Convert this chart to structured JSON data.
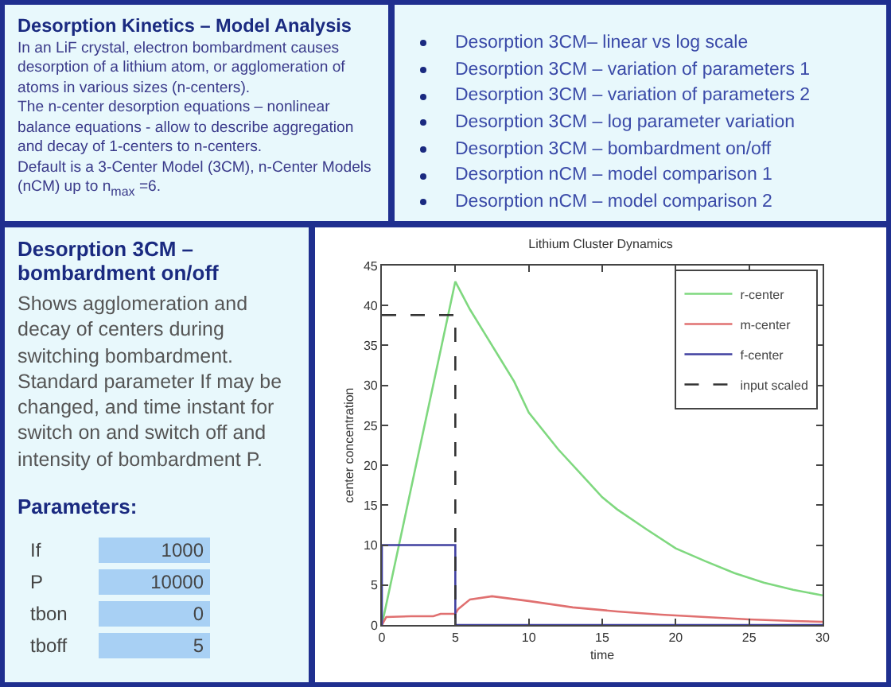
{
  "chart_data": [
    {
      "type": "other",
      "title": "Desorption Kinetics – Model Analysis",
      "annotations": [
        "In an LiF crystal, electron bombardment causes desorption of a lithium atom, or agglomeration of atoms in various sizes (n-centers).",
        "The n-center desorption equations – nonlinear balance equations - allow to describe aggregation and decay of 1-centers to n-centers.",
        "Default is a 3-Center Model (3CM), n-Center Models (nCM) up to n$_{max}$ =6."
      ]
    },
    {
      "type": "other",
      "categories": [
        "Desorption 3CM– linear vs log scale",
        "Desorption 3CM – variation of parameters 1",
        "Desorption 3CM – variation of parameters 2",
        "Desorption 3CM – log parameter variation",
        "Desorption 3CM – bombardment on/off",
        "Desorption nCM – model comparison 1",
        "Desorption nCM – model comparison 2"
      ]
    },
    {
      "type": "other",
      "title": "Desorption 3CM – bombardment on/off",
      "annotations": [
        "Shows agglomeration and decay of centers during switching bombardment. Standard parameter If may be changed, and time instant for switch on and switch off and intensity of bombardment P.",
        "Parameters:"
      ],
      "categories": [
        "If",
        "P",
        "tbon",
        "tboff"
      ],
      "values": [
        1000,
        10000,
        0,
        5
      ],
      "data_labels": true
    },
    {
      "type": "line",
      "title": "Lithium Cluster Dynamics",
      "xlabel": "time",
      "ylabel": "center concentration",
      "xlim": [
        0,
        30
      ],
      "xticks": [
        0,
        5,
        10,
        15,
        20,
        25,
        30
      ],
      "ylim": [
        0,
        45
      ],
      "yticks": [
        0,
        5,
        10,
        15,
        20,
        25,
        30,
        35,
        40,
        45
      ],
      "grid": false,
      "legend": "top right",
      "marker": "none",
      "series": [
        {
          "name": "r-center",
          "color": "#7fd87f",
          "line_style": "solid",
          "x": [
            0,
            5,
            6,
            7,
            8,
            9,
            10,
            12,
            14,
            15,
            16,
            18,
            20,
            22,
            24,
            26,
            28,
            30
          ],
          "values": [
            0,
            43,
            39.5,
            36.5,
            33.5,
            30.5,
            26.6,
            22,
            18,
            16,
            14.5,
            12,
            9.6,
            8,
            6.5,
            5.3,
            4.4,
            3.7
          ]
        },
        {
          "name": "m-center",
          "color": "#e07070",
          "line_style": "solid",
          "x": [
            0,
            0.3,
            2,
            3.5,
            4,
            5,
            5.2,
            6,
            7.5,
            10,
            13,
            16,
            19,
            22,
            25,
            28,
            30
          ],
          "values": [
            0,
            1,
            1.1,
            1.1,
            1.4,
            1.4,
            2,
            3.2,
            3.6,
            3,
            2.2,
            1.7,
            1.3,
            1,
            0.7,
            0.5,
            0.4
          ]
        },
        {
          "name": "f-center",
          "color": "#4040a0",
          "line_style": "solid",
          "x": [
            0,
            0,
            5,
            5,
            30
          ],
          "values": [
            0,
            10,
            10,
            0,
            0
          ]
        },
        {
          "name": "input scaled",
          "color": "#333333",
          "line_style": "dashed",
          "x": [
            0,
            5,
            5
          ],
          "values": [
            38.8,
            38.8,
            0
          ]
        }
      ]
    }
  ]
}
